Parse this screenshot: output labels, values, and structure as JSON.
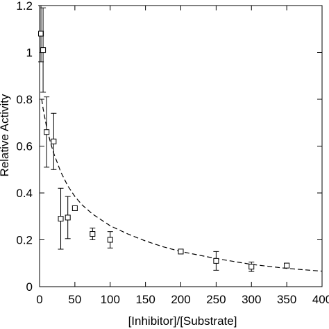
{
  "chart_data": {
    "type": "scatter",
    "title": "",
    "xlabel": "[Inhibitor]/[Substrate]",
    "ylabel": "Relative Activity",
    "xlim": [
      0,
      400
    ],
    "ylim": [
      0,
      1.2
    ],
    "xticks": [
      "0",
      "50",
      "100",
      "150",
      "200",
      "250",
      "300",
      "350",
      "400"
    ],
    "yticks": [
      "0",
      "0.2",
      "0.4",
      "0.6",
      "0.8",
      "1",
      "1.2"
    ],
    "grid": false,
    "legend": "none",
    "marker": "open-square",
    "series": [
      {
        "points": [
          {
            "x": 2,
            "y": 1.08,
            "err": 0.12
          },
          {
            "x": 5,
            "y": 1.01,
            "err": 0.18
          },
          {
            "x": 10,
            "y": 0.66,
            "err": 0.15
          },
          {
            "x": 20,
            "y": 0.62,
            "err": 0.12
          },
          {
            "x": 30,
            "y": 0.29,
            "err": 0.13
          },
          {
            "x": 40,
            "y": 0.295,
            "err": 0.09
          },
          {
            "x": 50,
            "y": 0.335,
            "err": 0.01
          },
          {
            "x": 75,
            "y": 0.225,
            "err": 0.025
          },
          {
            "x": 100,
            "y": 0.2,
            "err": 0.035
          },
          {
            "x": 200,
            "y": 0.15,
            "err": 0.01
          },
          {
            "x": 250,
            "y": 0.11,
            "err": 0.04
          },
          {
            "x": 300,
            "y": 0.085,
            "err": 0.02
          },
          {
            "x": 350,
            "y": 0.09,
            "err": 0.01
          }
        ]
      }
    ],
    "fit": {
      "style": "dashed",
      "points": [
        [
          3,
          0.8
        ],
        [
          5,
          0.76
        ],
        [
          10,
          0.68
        ],
        [
          15,
          0.62
        ],
        [
          20,
          0.57
        ],
        [
          25,
          0.53
        ],
        [
          30,
          0.49
        ],
        [
          40,
          0.43
        ],
        [
          50,
          0.385
        ],
        [
          60,
          0.35
        ],
        [
          75,
          0.31
        ],
        [
          100,
          0.26
        ],
        [
          125,
          0.225
        ],
        [
          150,
          0.195
        ],
        [
          175,
          0.17
        ],
        [
          200,
          0.15
        ],
        [
          250,
          0.12
        ],
        [
          300,
          0.095
        ],
        [
          350,
          0.078
        ],
        [
          400,
          0.066
        ]
      ]
    },
    "colors": {
      "line": "#000000",
      "background": "#ffffff"
    }
  }
}
